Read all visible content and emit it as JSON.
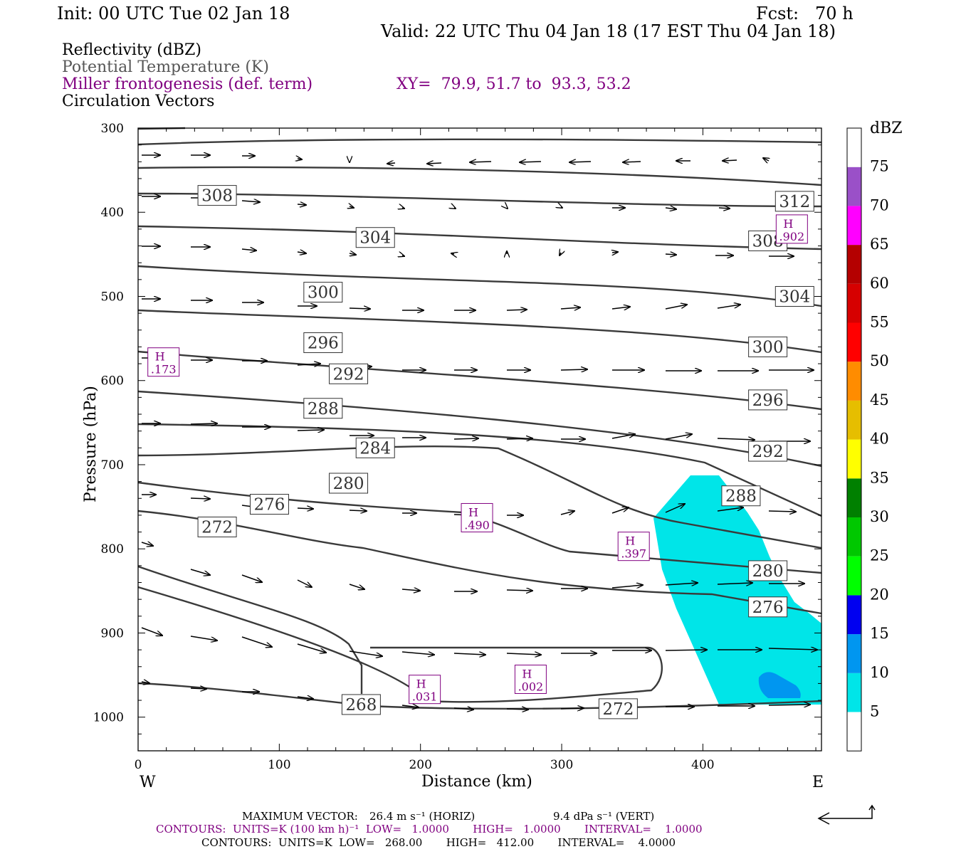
{
  "header": {
    "init": "Init: 00 UTC Tue 02 Jan 18",
    "fcst": "Fcst:   70 h",
    "valid": "Valid: 22 UTC Thu 04 Jan 18 (17 EST Thu 04 Jan 18)"
  },
  "legend_lines": {
    "reflectivity": "Reflectivity (dBZ)",
    "theta": "Potential Temperature (K)",
    "miller": "Miller frontogenesis (def. term)",
    "xy": "XY=  79.9, 51.7 to  93.3, 53.2",
    "vectors": "Circulation Vectors"
  },
  "colors": {
    "purple": "#800080",
    "contour": "#3a3a3a",
    "cyan": "#00e5e8",
    "blue10": "#0096f0"
  },
  "chart_data": {
    "type": "cross-section",
    "xlabel": "Distance (km)",
    "ylabel": "Pressure (hPa)",
    "xlim": [
      0,
      484
    ],
    "ylim": [
      300,
      1040
    ],
    "x_ticks": [
      "0",
      "100",
      "200",
      "300",
      "400"
    ],
    "y_ticks": [
      "300",
      "400",
      "500",
      "600",
      "700",
      "800",
      "900",
      "1000"
    ],
    "x_ticks_values": [
      0,
      100,
      200,
      300,
      400
    ],
    "y_ticks_values": [
      300,
      400,
      500,
      600,
      700,
      800,
      900,
      1000
    ],
    "west_label": "W",
    "east_label": "E",
    "colorbar": {
      "unit": "dBZ",
      "labels": [
        "5",
        "10",
        "15",
        "20",
        "25",
        "30",
        "35",
        "40",
        "45",
        "50",
        "55",
        "60",
        "65",
        "70",
        "75"
      ],
      "colors": [
        "#ffffff",
        "#00e5e8",
        "#0096f0",
        "#0000f0",
        "#00ff00",
        "#00c800",
        "#008000",
        "#ffff00",
        "#e6be00",
        "#ff8c00",
        "#ff0000",
        "#d60000",
        "#b40000",
        "#ff00ff",
        "#9a50c8",
        "#ffffff"
      ]
    },
    "theta_labels": [
      {
        "text": "308",
        "x": 56,
        "p": 380
      },
      {
        "text": "312",
        "x": 465,
        "p": 387
      },
      {
        "text": "304",
        "x": 168,
        "p": 430
      },
      {
        "text": "308",
        "x": 446,
        "p": 434
      },
      {
        "text": "300",
        "x": 131,
        "p": 495
      },
      {
        "text": "304",
        "x": 465,
        "p": 500
      },
      {
        "text": "296",
        "x": 131,
        "p": 555
      },
      {
        "text": "300",
        "x": 446,
        "p": 560
      },
      {
        "text": "292",
        "x": 149,
        "p": 592
      },
      {
        "text": "296",
        "x": 446,
        "p": 623
      },
      {
        "text": "288",
        "x": 131,
        "p": 633
      },
      {
        "text": "284",
        "x": 168,
        "p": 680
      },
      {
        "text": "292",
        "x": 446,
        "p": 684
      },
      {
        "text": "280",
        "x": 149,
        "p": 722
      },
      {
        "text": "288",
        "x": 427,
        "p": 737
      },
      {
        "text": "276",
        "x": 93,
        "p": 747
      },
      {
        "text": "272",
        "x": 56,
        "p": 774
      },
      {
        "text": "280",
        "x": 446,
        "p": 826
      },
      {
        "text": "276",
        "x": 446,
        "p": 869
      },
      {
        "text": "268",
        "x": 158,
        "p": 985
      },
      {
        "text": "272",
        "x": 340,
        "p": 990
      }
    ],
    "frontogenesis_highs": [
      {
        "label": "H",
        "value": ".902",
        "x": 463,
        "p": 420
      },
      {
        "label": "H",
        "value": ".173",
        "x": 18,
        "p": 578
      },
      {
        "label": "H",
        "value": ".490",
        "x": 240,
        "p": 763
      },
      {
        "label": "H",
        "value": ".397",
        "x": 351,
        "p": 797
      },
      {
        "label": "H",
        "value": ".002",
        "x": 278,
        "p": 955
      },
      {
        "label": "H",
        "value": ".031",
        "x": 203,
        "p": 967
      }
    ],
    "maximum_vector": {
      "label": "MAXIMUM VECTOR:",
      "horiz": "26.4 m s⁻¹ (HORIZ)",
      "vert": "9.4 dPa s⁻¹ (VERT)"
    }
  },
  "footer": {
    "contours1": "CONTOURS:  UNITS=K (100 km h)⁻¹  LOW=   1.0000       HIGH=   1.0000       INTERVAL=    1.0000",
    "contours2": "CONTOURS:  UNITS=K  LOW=   268.00       HIGH=   412.00       INTERVAL=    4.0000"
  }
}
